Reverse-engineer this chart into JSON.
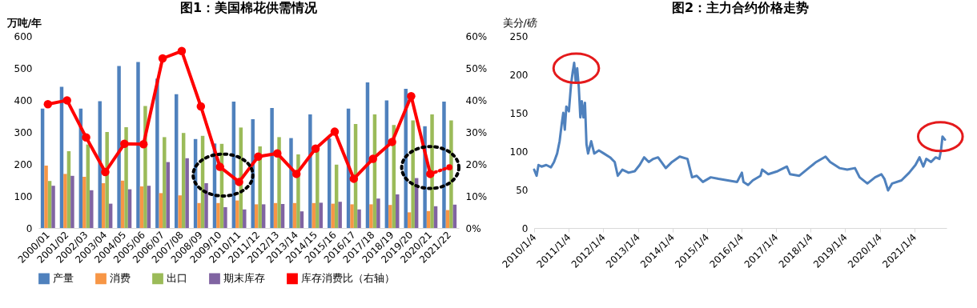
{
  "chart_data": [
    {
      "type": "bar",
      "title": "图1：美国棉花供需情况",
      "ylabel": "万吨/年",
      "categories": [
        "2000/01",
        "2001/02",
        "2002/03",
        "2003/04",
        "2004/05",
        "2005/06",
        "2006/07",
        "2007/08",
        "2008/09",
        "2009/10",
        "2010/11",
        "2011/12",
        "2012/13",
        "2013/14",
        "2014/15",
        "2015/16",
        "2016/17",
        "2017/18",
        "2018/19",
        "2019/20",
        "2020/21",
        "2021/22"
      ],
      "series": [
        {
          "name": "产量",
          "color": "#4f81bd",
          "values": [
            373,
            441,
            373,
            396,
            506,
            519,
            467,
            418,
            278,
            264,
            395,
            340,
            375,
            281,
            355,
            280,
            373,
            455,
            399,
            435,
            318,
            395
          ]
        },
        {
          "name": "消费",
          "color": "#f79646",
          "values": [
            195,
            169,
            160,
            140,
            148,
            130,
            109,
            102,
            78,
            78,
            86,
            74,
            78,
            78,
            78,
            76,
            74,
            74,
            72,
            49,
            53,
            56
          ]
        },
        {
          "name": "出口",
          "color": "#9bbb59",
          "values": [
            147,
            240,
            261,
            300,
            315,
            381,
            284,
            297,
            288,
            263,
            314,
            255,
            284,
            230,
            247,
            198,
            325,
            355,
            322,
            336,
            355,
            336
          ]
        },
        {
          "name": "期末库存",
          "color": "#8064a2",
          "values": [
            132,
            163,
            118,
            76,
            121,
            132,
            206,
            218,
            140,
            65,
            58,
            74,
            75,
            52,
            79,
            82,
            58,
            92,
            105,
            156,
            68,
            73
          ]
        },
        {
          "name": "库存消费比（右轴）",
          "color": "#ff0000",
          "type": "line",
          "axis": "y2",
          "marker": "circle",
          "line_style": "solid",
          "values": [
            38.7,
            39.9,
            28.3,
            17.5,
            26.3,
            26.2,
            53.0,
            55.3,
            38.0,
            19.1,
            14.4,
            22.3,
            23.3,
            16.9,
            24.8,
            30.1,
            15.4,
            21.6,
            26.9,
            41.2,
            16.9,
            null
          ]
        },
        {
          "color": "#ff0000",
          "type": "line",
          "axis": "y2",
          "marker": "circle",
          "line_style": "dotted",
          "values": [
            null,
            null,
            null,
            null,
            null,
            null,
            null,
            null,
            null,
            null,
            null,
            null,
            null,
            null,
            null,
            null,
            null,
            null,
            null,
            null,
            16.9,
            19.0
          ]
        }
      ],
      "ylim": [
        0,
        600
      ],
      "yticks": [
        0,
        100,
        200,
        300,
        400,
        500,
        600
      ],
      "y2lim": [
        0,
        60
      ],
      "y2ticks": [
        {
          "value": 0,
          "label": "0%"
        },
        {
          "value": 10,
          "label": "10%"
        },
        {
          "value": 20,
          "label": "20%"
        },
        {
          "value": 30,
          "label": "30%"
        },
        {
          "value": 40,
          "label": "40%"
        },
        {
          "value": 50,
          "label": "50%"
        },
        {
          "value": 60,
          "label": "60%"
        }
      ],
      "grid": false,
      "legend": "bottom"
    },
    {
      "type": "line",
      "title": "图2：主力合约价格走势",
      "ylabel": "美分/磅",
      "x": [
        "2010-01-04",
        "2010-01-30",
        "2010-02-19",
        "2010-03-23",
        "2010-05-12",
        "2010-06-30",
        "2010-08-02",
        "2010-09-04",
        "2010-09-30",
        "2010-10-23",
        "2010-11-08",
        "2010-11-24",
        "2010-12-10",
        "2011-01-06",
        "2011-01-29",
        "2011-02-14",
        "2011-03-03",
        "2011-03-19",
        "2011-04-04",
        "2011-04-21",
        "2011-05-07",
        "2011-05-23",
        "2011-06-09",
        "2011-06-25",
        "2011-07-11",
        "2011-07-28",
        "2011-08-30",
        "2011-10-01",
        "2011-11-19",
        "2012-01-11",
        "2012-03-16",
        "2012-05-04",
        "2012-06-06",
        "2012-07-24",
        "2012-09-28",
        "2012-12-02",
        "2013-01-23",
        "2013-03-11",
        "2013-04-29",
        "2013-06-17",
        "2013-08-05",
        "2013-10-26",
        "2013-12-31",
        "2014-03-22",
        "2014-06-12",
        "2014-07-31",
        "2014-09-18",
        "2014-11-22",
        "2015-02-13",
        "2015-05-06",
        "2015-08-12",
        "2015-11-19",
        "2016-01-08",
        "2016-01-25",
        "2016-03-14",
        "2016-05-02",
        "2016-07-23",
        "2016-08-09",
        "2016-10-13",
        "2017-01-20",
        "2017-04-28",
        "2017-05-31",
        "2017-09-06",
        "2017-12-13",
        "2018-03-04",
        "2018-06-10",
        "2018-07-29",
        "2018-11-04",
        "2019-01-25",
        "2019-04-17",
        "2019-06-05",
        "2019-08-26",
        "2019-11-16",
        "2020-01-21",
        "2020-02-22",
        "2020-04-01",
        "2020-05-14",
        "2020-08-20",
        "2020-11-10",
        "2021-01-15",
        "2021-02-27",
        "2021-04-08",
        "2021-05-10",
        "2021-06-29",
        "2021-08-17",
        "2021-09-25",
        "2021-10-12",
        "2021-10-28",
        "2021-11-23"
      ],
      "series": [
        {
          "color": "#4f81bd",
          "values": [
            76,
            68,
            82,
            80,
            82,
            79,
            86,
            97,
            113,
            136,
            150,
            128,
            158,
            152,
            187,
            202,
            215,
            191,
            208,
            183,
            144,
            165,
            144,
            163,
            109,
            97,
            113,
            97,
            101,
            97,
            92,
            86,
            68,
            76,
            72,
            74,
            82,
            92,
            86,
            90,
            92,
            78,
            86,
            93,
            90,
            66,
            68,
            60,
            66,
            64,
            62,
            60,
            72,
            60,
            56,
            62,
            68,
            76,
            70,
            74,
            80,
            70,
            68,
            78,
            86,
            93,
            86,
            78,
            76,
            78,
            66,
            58,
            66,
            70,
            64,
            49,
            58,
            62,
            72,
            82,
            92,
            80,
            90,
            86,
            92,
            90,
            101,
            119,
            115
          ]
        }
      ],
      "xlim": [
        "2010-01-04",
        "2021-12-10"
      ],
      "xticks": [
        {
          "value": "2010-01-04",
          "label": "2010/1/4"
        },
        {
          "value": "2011-01-04",
          "label": "2011/1/4"
        },
        {
          "value": "2012-01-04",
          "label": "2012/1/4"
        },
        {
          "value": "2013-01-04",
          "label": "2013/1/4"
        },
        {
          "value": "2014-01-04",
          "label": "2014/1/4"
        },
        {
          "value": "2015-01-04",
          "label": "2015/1/4"
        },
        {
          "value": "2016-01-04",
          "label": "2016/1/4"
        },
        {
          "value": "2017-01-04",
          "label": "2017/1/4"
        },
        {
          "value": "2018-01-04",
          "label": "2018/1/4"
        },
        {
          "value": "2019-01-04",
          "label": "2019/1/4"
        },
        {
          "value": "2020-01-04",
          "label": "2020/1/4"
        },
        {
          "value": "2021-01-04",
          "label": "2021/1/4"
        }
      ],
      "ylim": [
        0,
        250
      ],
      "yticks": [
        0,
        50,
        100,
        150,
        200,
        250
      ],
      "grid": false
    }
  ]
}
